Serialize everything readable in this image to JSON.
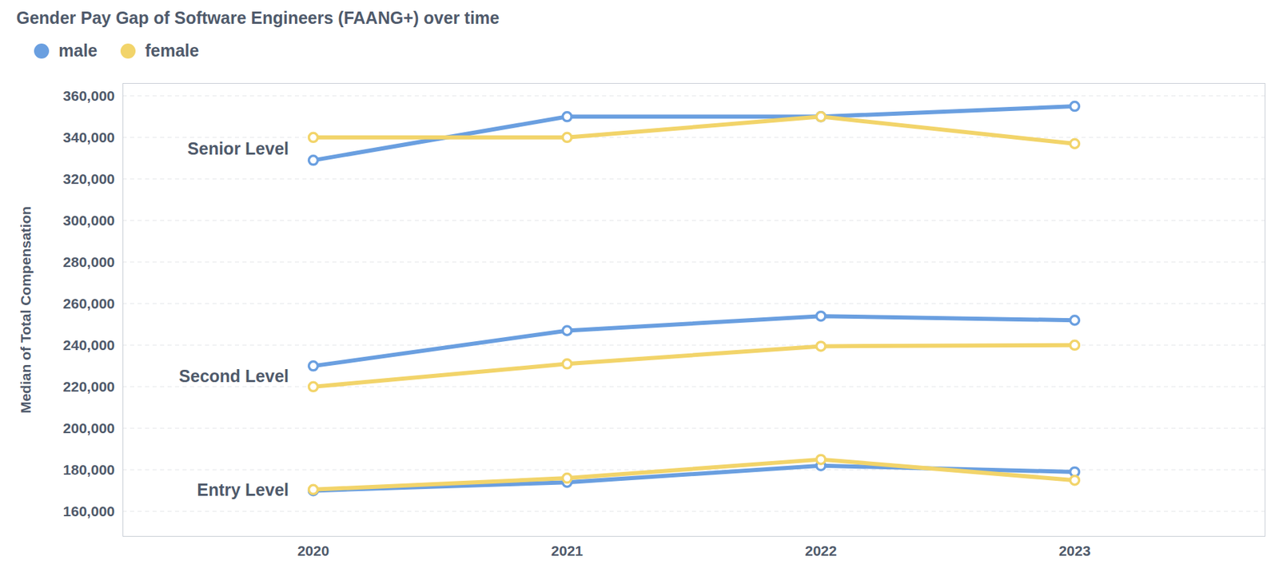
{
  "chart_data": {
    "type": "line",
    "title": "Gender Pay Gap of Software Engineers (FAANG+) over time",
    "y_label": "Median of Total Compensation",
    "x": [
      2020,
      2021,
      2022,
      2023
    ],
    "xlim": [
      2019.25,
      2023.75
    ],
    "xticks": [
      2020,
      2021,
      2022,
      2023
    ],
    "ylim": [
      148000,
      366000
    ],
    "yticks": [
      {
        "value": 160000,
        "label": "160,000"
      },
      {
        "value": 180000,
        "label": "180,000"
      },
      {
        "value": 200000,
        "label": "200,000"
      },
      {
        "value": 220000,
        "label": "220,000"
      },
      {
        "value": 240000,
        "label": "240,000"
      },
      {
        "value": 260000,
        "label": "260,000"
      },
      {
        "value": 280000,
        "label": "280,000"
      },
      {
        "value": 300000,
        "label": "300,000"
      },
      {
        "value": 320000,
        "label": "320,000"
      },
      {
        "value": 340000,
        "label": "340,000"
      },
      {
        "value": 360000,
        "label": "360,000"
      }
    ],
    "grid": true,
    "legend": "top-left",
    "marker": "circle",
    "series": [
      {
        "name": "male",
        "group": "Senior Level",
        "color": "#6a9fe0",
        "values": [
          329000,
          350000,
          350000,
          355000
        ]
      },
      {
        "name": "female",
        "group": "Senior Level",
        "color": "#f2d46a",
        "values": [
          340000,
          340000,
          350000,
          337000
        ]
      },
      {
        "name": "male",
        "group": "Second Level",
        "color": "#6a9fe0",
        "values": [
          230000,
          247000,
          254000,
          252000
        ]
      },
      {
        "name": "female",
        "group": "Second Level",
        "color": "#f2d46a",
        "values": [
          220000,
          231000,
          239500,
          240000
        ]
      },
      {
        "name": "male",
        "group": "Entry Level",
        "color": "#6a9fe0",
        "values": [
          170000,
          174000,
          182000,
          179000
        ]
      },
      {
        "name": "female",
        "group": "Entry Level",
        "color": "#f2d46a",
        "values": [
          170500,
          176000,
          185000,
          175000
        ]
      }
    ]
  }
}
